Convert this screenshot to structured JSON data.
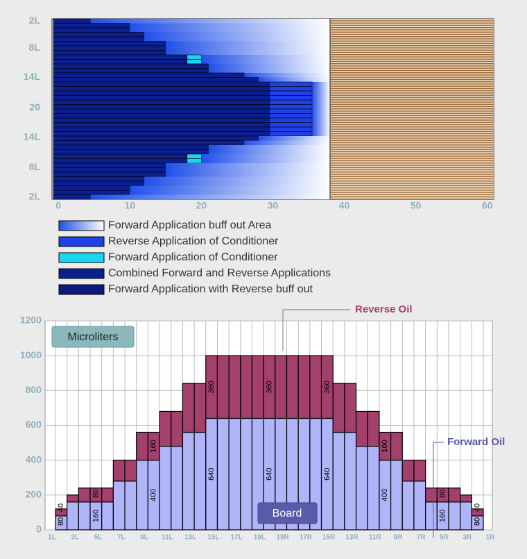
{
  "chart_data": [
    {
      "type": "lanes",
      "xlim": [
        -0.9,
        60.9
      ],
      "xticks": [
        0,
        10,
        20,
        30,
        40,
        50,
        60
      ],
      "ylim": [
        0,
        40
      ],
      "yticks": [
        {
          "value": 0.5,
          "label": "2L"
        },
        {
          "value": 6.5,
          "label": "8L"
        },
        {
          "value": 13,
          "label": "14L"
        },
        {
          "value": 19.75,
          "label": "20"
        },
        {
          "value": 26.25,
          "label": "14L"
        },
        {
          "value": 33,
          "label": "8L"
        },
        {
          "value": 39.5,
          "label": "2L"
        }
      ],
      "buff_end": 38,
      "series": [
        {
          "name": "Combined Forward and Reverse Applications",
          "color": "#0c1f8f",
          "values": [
            4.5,
            10,
            10,
            12,
            12,
            15,
            15,
            15,
            18,
            18,
            21,
            21,
            26,
            28,
            29.5,
            29.5,
            29.5,
            29.5,
            29.5,
            29.5,
            29.5,
            29.5,
            29.5,
            29.5,
            29.5,
            29.5,
            28,
            26,
            21,
            21,
            18,
            18,
            15,
            15,
            15,
            12,
            12,
            10,
            10,
            4.5
          ]
        },
        {
          "name": "Forward Application of Conditioner",
          "color": "#19d6f0",
          "values": [
            0,
            0,
            0,
            0,
            0,
            0,
            0,
            0,
            2,
            2,
            0,
            0,
            0,
            0,
            0,
            0,
            0,
            0,
            0,
            0,
            0,
            0,
            0,
            0,
            0,
            0,
            0,
            0,
            0,
            0,
            2,
            2,
            0,
            0,
            0,
            0,
            0,
            0,
            0,
            0
          ]
        },
        {
          "name": "Reverse Application of Conditioner",
          "color": "#1e40e6",
          "values": [
            0,
            0,
            0,
            0,
            0,
            0,
            0,
            0,
            0,
            0,
            0,
            0,
            0,
            0,
            6,
            6,
            6,
            6,
            6,
            6,
            6,
            6,
            6,
            6,
            6,
            6,
            0,
            0,
            0,
            0,
            0,
            0,
            0,
            0,
            0,
            0,
            0,
            0,
            0,
            0
          ]
        }
      ],
      "legend": [
        {
          "label": "Forward Application buff out Area",
          "color": "#2050e8"
        },
        {
          "label": "Reverse Application of Conditioner",
          "color": "#1e40e6"
        },
        {
          "label": "Forward Application of Conditioner",
          "color": "#19d6f0"
        },
        {
          "label": "Combined Forward and Reverse Applications",
          "color": "#0c1f8f"
        },
        {
          "label": "Forward Application with Reverse buff out",
          "color": "#0a1a80"
        }
      ]
    },
    {
      "type": "stacked_bar",
      "ylim": [
        0,
        1200
      ],
      "yticks": [
        0,
        200,
        400,
        600,
        800,
        1000,
        1200
      ],
      "grid": true,
      "xtick_labels": [
        "1L",
        "3L",
        "5L",
        "7L",
        "9L",
        "11L",
        "13L",
        "15L",
        "17L",
        "19L",
        "19R",
        "17R",
        "15R",
        "13R",
        "11R",
        "9R",
        "7R",
        "5R",
        "3R",
        "1R"
      ],
      "series": [
        {
          "name": "Forward Oil",
          "color": "#b0b4f8",
          "values": [
            80,
            160,
            160,
            160,
            160,
            280,
            280,
            400,
            400,
            480,
            480,
            560,
            560,
            640,
            640,
            640,
            640,
            640,
            640,
            640,
            640,
            640,
            640,
            640,
            560,
            560,
            480,
            480,
            400,
            400,
            280,
            280,
            160,
            160,
            160,
            160,
            80
          ],
          "value_labels": [
            "80",
            null,
            null,
            "160",
            null,
            null,
            null,
            null,
            "400",
            null,
            null,
            null,
            null,
            "640",
            null,
            null,
            null,
            null,
            "640",
            null,
            null,
            null,
            null,
            "640",
            null,
            null,
            null,
            null,
            "400",
            null,
            null,
            null,
            null,
            "160",
            null,
            null,
            "80"
          ]
        },
        {
          "name": "Reverse Oil",
          "color": "#a3406c",
          "values": [
            40,
            40,
            80,
            80,
            80,
            120,
            120,
            160,
            160,
            200,
            200,
            280,
            280,
            360,
            360,
            360,
            360,
            360,
            360,
            360,
            360,
            360,
            360,
            360,
            280,
            280,
            200,
            200,
            160,
            160,
            120,
            120,
            80,
            80,
            80,
            40,
            40
          ],
          "value_labels": [
            "40",
            null,
            null,
            "80",
            null,
            null,
            null,
            null,
            "160",
            null,
            null,
            null,
            null,
            "360",
            null,
            null,
            null,
            null,
            "360",
            null,
            null,
            null,
            null,
            "360",
            null,
            null,
            null,
            null,
            "160",
            null,
            null,
            null,
            null,
            "80",
            null,
            null,
            "40"
          ]
        }
      ],
      "unit_label": "Microliters",
      "board_label": "Board"
    }
  ]
}
